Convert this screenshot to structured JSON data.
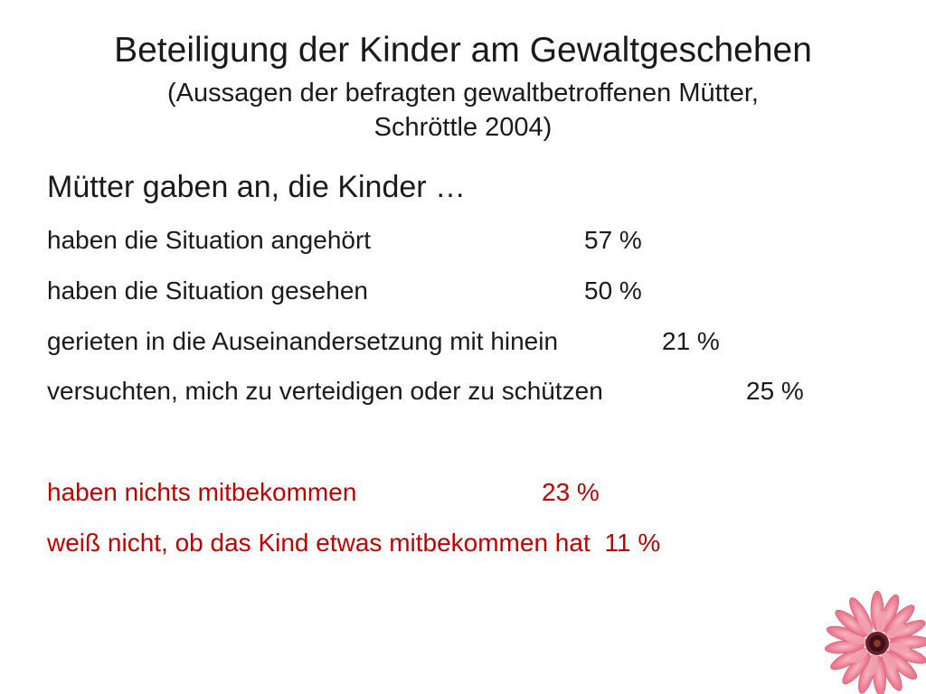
{
  "slide": {
    "title": "Beteiligung der Kinder am Gewaltgeschehen",
    "subtitle_line1": "(Aussagen der befragten gewaltbetroffenen Mütter,",
    "subtitle_line2": "Schröttle 2004)",
    "intro": "Mütter gaben an, die Kinder …",
    "items": [
      {
        "text": "haben die Situation angehört",
        "percent": "57 %"
      },
      {
        "text": "haben die Situation gesehen",
        "percent": "50 %"
      },
      {
        "text": "gerieten in die Auseinandersetzung mit hinein",
        "percent": "21 %"
      },
      {
        "text": "versuchten, mich zu verteidigen oder zu schützen",
        "percent": "25 %"
      }
    ],
    "highlight_items": [
      {
        "text": "haben nichts mitbekommen",
        "percent": "23 %"
      },
      {
        "text": "weiß nicht, ob das Kind etwas mitbekommen hat",
        "percent": "11 %"
      }
    ],
    "colors": {
      "text": "#1a1a1a",
      "highlight": "#c00000",
      "background": "#ffffff"
    },
    "decoration_icon": "pink-gerbera-flower-icon"
  }
}
